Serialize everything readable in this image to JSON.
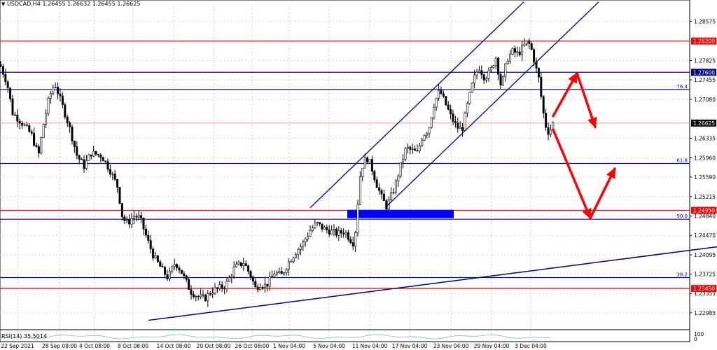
{
  "header": {
    "symbol_info": "USDCAD,H4",
    "ohlc": "1.26455 1.26632 1.26455 1.26625"
  },
  "rsi": {
    "label": "RSI(14) 35.5014",
    "scale_top": "100",
    "scale_bottom": "0"
  },
  "chart_data": {
    "type": "candlestick",
    "symbol": "USDCAD",
    "timeframe": "H4",
    "x_labels": [
      "22 Sep 2021",
      "28 Sep 08:00",
      "4 Oct 08:00",
      "8 Oct 08:00",
      "14 Oct 08:00",
      "20 Oct 08:00",
      "26 Oct 08:00",
      "1 Nov 04:00",
      "5 Nov 04:00",
      "11 Nov 04:00",
      "17 Nov 04:00",
      "23 Nov 04:00",
      "29 Nov 04:00",
      "3 Dec 04:00"
    ],
    "y_ticks": [
      "1.28575",
      "1.27825",
      "1.27455",
      "1.27080",
      "1.26335",
      "1.25960",
      "1.25590",
      "1.25215",
      "1.24840",
      "1.24470",
      "1.24095",
      "1.23725",
      "1.23355",
      "1.22985"
    ],
    "ylim": [
      1.2274,
      1.2888
    ],
    "current_price": "1.26625",
    "current_price_value": 1.26625,
    "levels": [
      {
        "label": "1.28200",
        "value": 1.282,
        "color": "#ff0000",
        "kind": "resistance"
      },
      {
        "label": "1.27600",
        "value": 1.276,
        "color": "#0000b0",
        "kind": "level"
      },
      {
        "label": "76.4",
        "value": 1.2727,
        "color": "#0000b0",
        "kind": "fibonacci"
      },
      {
        "label": "61.8",
        "value": 1.2585,
        "color": "#0000b0",
        "kind": "fibonacci"
      },
      {
        "label": "1.24950",
        "value": 1.2495,
        "color": "#ff0000",
        "kind": "support"
      },
      {
        "label": "50.0",
        "value": 1.2478,
        "color": "#0000b0",
        "kind": "fibonacci"
      },
      {
        "label": "38.2",
        "value": 1.2366,
        "color": "#0000b0",
        "kind": "fibonacci"
      },
      {
        "label": "1.23450",
        "value": 1.2345,
        "color": "#ff0000",
        "kind": "support"
      }
    ],
    "price_path": [
      [
        0,
        1.2775
      ],
      [
        10,
        1.274
      ],
      [
        18,
        1.2682
      ],
      [
        32,
        1.2662
      ],
      [
        45,
        1.264
      ],
      [
        55,
        1.26
      ],
      [
        62,
        1.266
      ],
      [
        70,
        1.271
      ],
      [
        78,
        1.274
      ],
      [
        88,
        1.27
      ],
      [
        98,
        1.266
      ],
      [
        110,
        1.26
      ],
      [
        120,
        1.258
      ],
      [
        130,
        1.2605
      ],
      [
        145,
        1.26
      ],
      [
        158,
        1.257
      ],
      [
        168,
        1.254
      ],
      [
        175,
        1.248
      ],
      [
        182,
        1.247
      ],
      [
        192,
        1.2485
      ],
      [
        200,
        1.248
      ],
      [
        210,
        1.244
      ],
      [
        220,
        1.2405
      ],
      [
        232,
        1.238
      ],
      [
        240,
        1.2365
      ],
      [
        250,
        1.2395
      ],
      [
        258,
        1.238
      ],
      [
        265,
        1.236
      ],
      [
        272,
        1.234
      ],
      [
        282,
        1.233
      ],
      [
        292,
        1.2325
      ],
      [
        302,
        1.234
      ],
      [
        312,
        1.2345
      ],
      [
        322,
        1.235
      ],
      [
        335,
        1.2385
      ],
      [
        348,
        1.2395
      ],
      [
        358,
        1.237
      ],
      [
        365,
        1.2345
      ],
      [
        372,
        1.2355
      ],
      [
        380,
        1.235
      ],
      [
        392,
        1.2375
      ],
      [
        402,
        1.237
      ],
      [
        412,
        1.2395
      ],
      [
        422,
        1.2415
      ],
      [
        432,
        1.243
      ],
      [
        442,
        1.2455
      ],
      [
        452,
        1.247
      ],
      [
        462,
        1.246
      ],
      [
        472,
        1.2455
      ],
      [
        482,
        1.245
      ],
      [
        492,
        1.2455
      ],
      [
        500,
        1.244
      ],
      [
        506,
        1.243
      ],
      [
        510,
        1.2495
      ],
      [
        515,
        1.257
      ],
      [
        520,
        1.259
      ],
      [
        525,
        1.2595
      ],
      [
        530,
        1.258
      ],
      [
        538,
        1.2545
      ],
      [
        545,
        1.252
      ],
      [
        552,
        1.2502
      ],
      [
        558,
        1.252
      ],
      [
        565,
        1.2545
      ],
      [
        572,
        1.258
      ],
      [
        580,
        1.2615
      ],
      [
        588,
        1.261
      ],
      [
        596,
        1.2605
      ],
      [
        604,
        1.264
      ],
      [
        612,
        1.265
      ],
      [
        620,
        1.27
      ],
      [
        628,
        1.2725
      ],
      [
        636,
        1.27
      ],
      [
        644,
        1.2675
      ],
      [
        652,
        1.2655
      ],
      [
        660,
        1.265
      ],
      [
        668,
        1.27
      ],
      [
        676,
        1.2745
      ],
      [
        684,
        1.277
      ],
      [
        692,
        1.275
      ],
      [
        700,
        1.276
      ],
      [
        708,
        1.279
      ],
      [
        716,
        1.273
      ],
      [
        724,
        1.2785
      ],
      [
        732,
        1.28
      ],
      [
        740,
        1.2795
      ],
      [
        748,
        1.281
      ],
      [
        754,
        1.282
      ],
      [
        760,
        1.28
      ],
      [
        765,
        1.277
      ],
      [
        770,
        1.2745
      ],
      [
        774,
        1.27
      ],
      [
        778,
        1.2665
      ],
      [
        782,
        1.2645
      ],
      [
        786,
        1.265
      ],
      [
        790,
        1.2662
      ]
    ],
    "channel_lines": [
      {
        "from": [
          443,
          1.25
        ],
        "to": [
          748,
          1.2895
        ]
      },
      {
        "from": [
          550,
          1.25
        ],
        "to": [
          855,
          1.2895
        ]
      }
    ],
    "trend_line": {
      "from": [
        212,
        1.2284
      ],
      "to": [
        1024,
        1.2425
      ]
    },
    "support_zone": {
      "x_from": 496,
      "x_to": 648,
      "y_from": 1.248,
      "y_to": 1.2496,
      "color": "#0000ff"
    },
    "projection_arrows": [
      {
        "path": [
          [
            790,
            1.2676
          ],
          [
            824,
            1.2758
          ],
          [
            850,
            1.2655
          ]
        ],
        "color": "#ff0000"
      },
      {
        "path": [
          [
            790,
            1.265
          ],
          [
            843,
            1.248
          ],
          [
            878,
            1.2575
          ]
        ],
        "color": "#ff0000"
      }
    ]
  }
}
